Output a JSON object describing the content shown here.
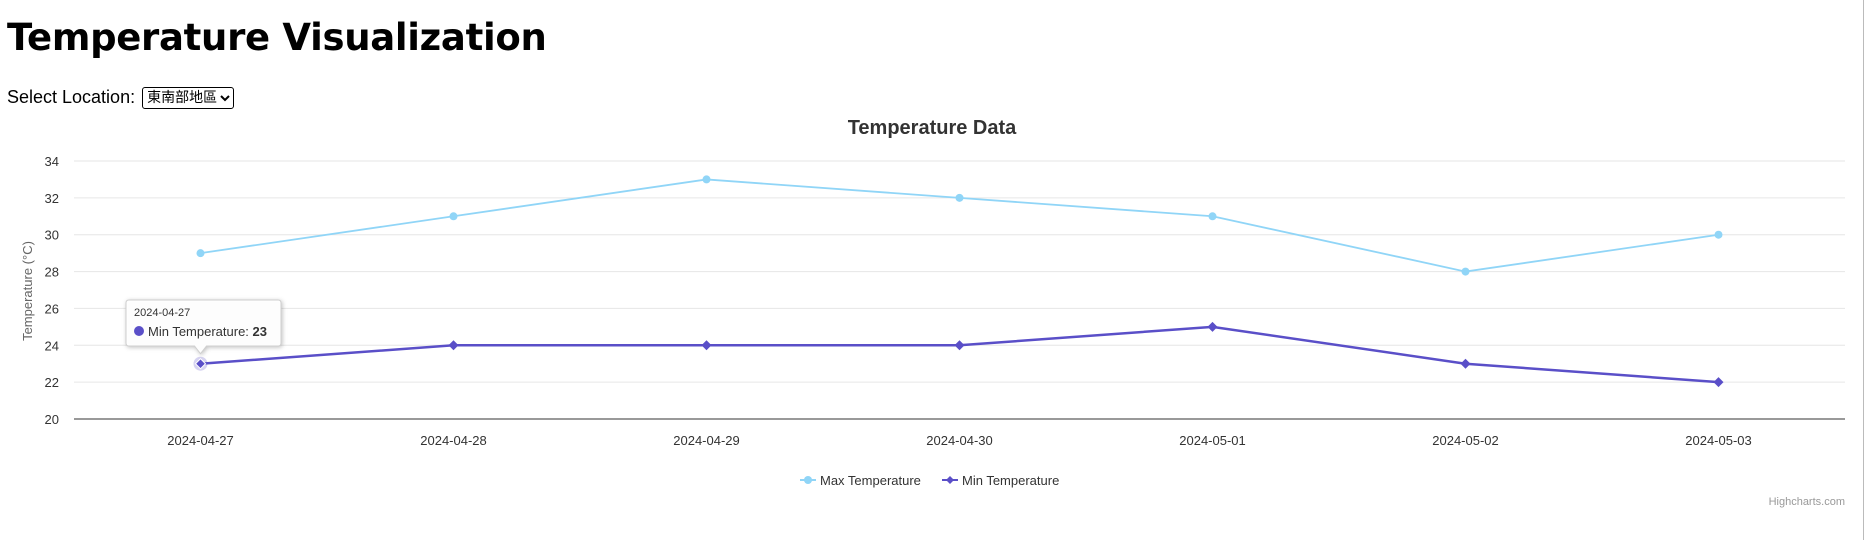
{
  "page": {
    "title": "Temperature Visualization",
    "location_label": "Select Location:",
    "location_selected": "東南部地區"
  },
  "chart_data": {
    "type": "line",
    "title": "Temperature Data",
    "xlabel": "",
    "ylabel": "Temperature (°C)",
    "categories": [
      "2024-04-27",
      "2024-04-28",
      "2024-04-29",
      "2024-04-30",
      "2024-05-01",
      "2024-05-02",
      "2024-05-03"
    ],
    "series": [
      {
        "name": "Max Temperature",
        "color": "#90d5f7",
        "marker": "circle",
        "values": [
          29,
          31,
          33,
          32,
          31,
          28,
          30
        ]
      },
      {
        "name": "Min Temperature",
        "color": "#5a4fc8",
        "marker": "diamond",
        "values": [
          23,
          24,
          24,
          24,
          25,
          23,
          22
        ]
      }
    ],
    "ylim": [
      20,
      34
    ],
    "yticks": [
      20,
      22,
      24,
      26,
      28,
      30,
      32,
      34
    ],
    "grid": true,
    "legend": "bottom-center",
    "tooltip": {
      "date": "2024-04-27",
      "series": "Min Temperature",
      "value": "23"
    },
    "credits": "Highcharts.com"
  }
}
